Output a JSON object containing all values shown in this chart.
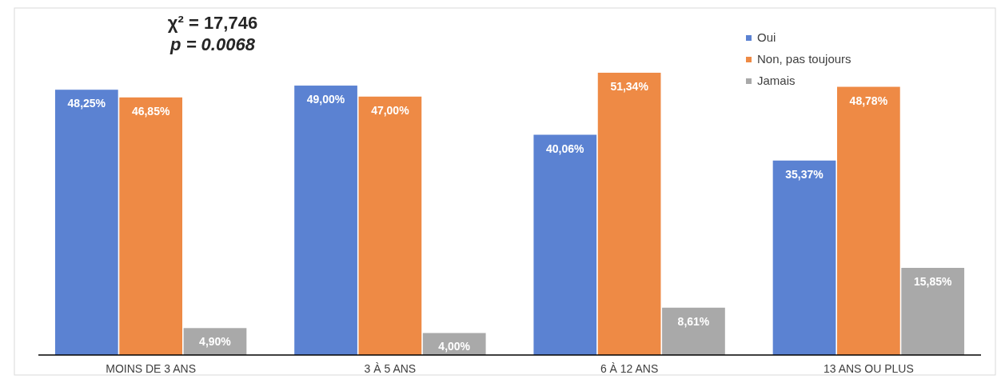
{
  "chart_data": {
    "type": "bar",
    "categories": [
      "MOINS DE 3 ANS",
      "3 À 5 ANS",
      "6 À 12 ANS",
      "13 ANS OU PLUS"
    ],
    "series": [
      {
        "name": "Oui",
        "color": "#5b82d2",
        "values": [
          48.25,
          49.0,
          40.06,
          35.37
        ],
        "value_labels": [
          "48,25%",
          "49,00%",
          "40,06%",
          "35,37%"
        ]
      },
      {
        "name": "Non, pas toujours",
        "color": "#ee8a45",
        "values": [
          46.85,
          47.0,
          51.34,
          48.78
        ],
        "value_labels": [
          "46,85%",
          "47,00%",
          "51,34%",
          "48,78%"
        ]
      },
      {
        "name": "Jamais",
        "color": "#a9a9a9",
        "values": [
          4.9,
          4.0,
          8.61,
          15.85
        ],
        "value_labels": [
          "4,90%",
          "4,00%",
          "8,61%",
          "15,85%"
        ]
      }
    ],
    "annotations": [
      "χ² = 17,746",
      "p = 0.0068"
    ],
    "legend": "top right",
    "grid": false
  }
}
